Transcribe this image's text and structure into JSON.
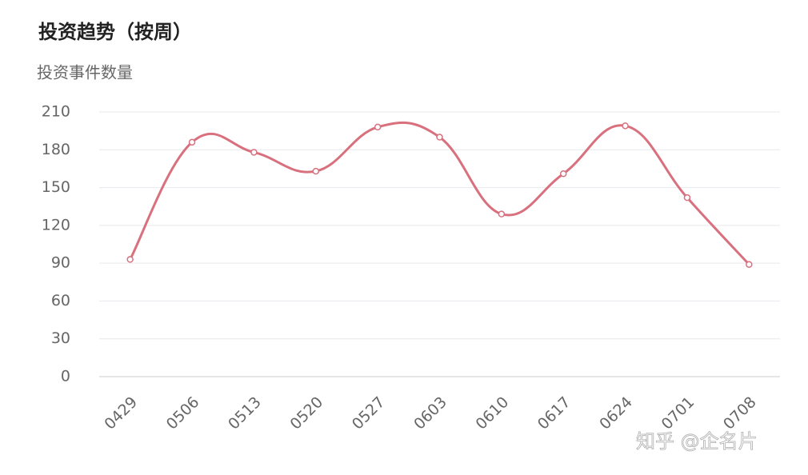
{
  "chart_data": {
    "type": "line",
    "title": "投资趋势（按周）",
    "y_label": "投资事件数量",
    "categories": [
      "0429",
      "0506",
      "0513",
      "0520",
      "0527",
      "0603",
      "0610",
      "0617",
      "0624",
      "0701",
      "0708"
    ],
    "values": [
      93,
      186,
      178,
      163,
      198,
      190,
      129,
      161,
      199,
      142,
      89
    ],
    "color": "#d9707e",
    "smooth": true,
    "ylim": [
      0,
      210
    ],
    "yticks": [
      0,
      30,
      60,
      90,
      120,
      150,
      180,
      210
    ],
    "grid": true,
    "watermark": "知乎 @企名片"
  }
}
